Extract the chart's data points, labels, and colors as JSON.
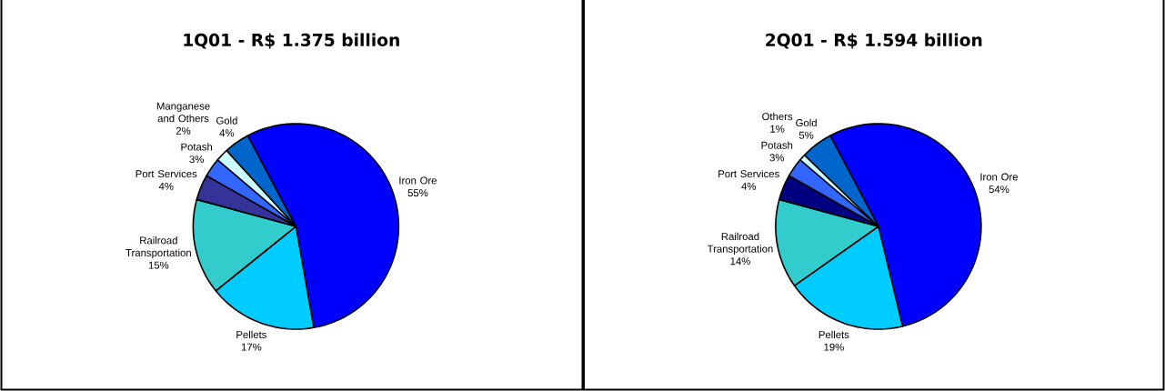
{
  "chart_data": [
    {
      "type": "pie",
      "title": "1Q01 - R$ 1.375 billion",
      "categories": [
        "Iron Ore",
        "Pellets",
        "Railroad Transportation",
        "Port Services",
        "Potash",
        "Manganese and Others",
        "Gold"
      ],
      "values": [
        55,
        17,
        15,
        4,
        3,
        2,
        4
      ],
      "value_labels": [
        "55%",
        "17%",
        "15%",
        "4%",
        "3%",
        "2%",
        "4%"
      ],
      "colors": [
        "#0000ff",
        "#00ccff",
        "#33cccc",
        "#333399",
        "#3366ff",
        "#ccffff",
        "#0066cc"
      ]
    },
    {
      "type": "pie",
      "title": "2Q01 - R$ 1.594 billion",
      "categories": [
        "Iron Ore",
        "Pellets",
        "Railroad Transportation",
        "Port Services",
        "Potash",
        "Others",
        "Gold"
      ],
      "values": [
        54,
        19,
        14,
        4,
        3,
        1,
        5
      ],
      "value_labels": [
        "54%",
        "19%",
        "14%",
        "4%",
        "3%",
        "1%",
        "5%"
      ],
      "colors": [
        "#0000ff",
        "#00ccff",
        "#33cccc",
        "#000080",
        "#3366ff",
        "#ccffff",
        "#0066cc"
      ]
    }
  ]
}
